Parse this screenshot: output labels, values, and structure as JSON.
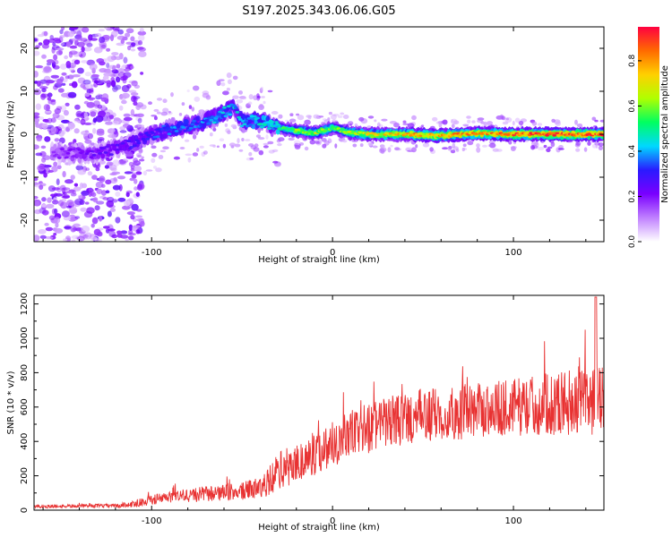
{
  "chart_data": [
    {
      "type": "heatmap",
      "title": "S197.2025.343.06.06.G05",
      "xlabel": "Height of straight line (km)",
      "ylabel": "Frequency (Hz)",
      "xlim": [
        -165,
        150
      ],
      "ylim": [
        -25,
        25
      ],
      "xticks": [
        -100,
        0,
        100
      ],
      "xtick_labels": [
        "-100",
        "0",
        "100"
      ],
      "yticks": [
        -20,
        -10,
        0,
        10,
        20
      ],
      "ytick_labels": [
        "-20",
        "-10",
        "0",
        "10",
        "20"
      ],
      "colorbar": {
        "label": "Normalized spectral amplitude",
        "range": [
          0,
          0.95
        ],
        "ticks": [
          0.0,
          0.2,
          0.4,
          0.6,
          0.8
        ],
        "tick_labels": [
          "0.0",
          "0.2",
          "0.4",
          "0.6",
          "0.8"
        ],
        "colormap": [
          "#ffffff",
          "#c080ff",
          "#7a00ff",
          "#2a1aff",
          "#00d8ff",
          "#00ff60",
          "#b0ff00",
          "#ffd000",
          "#ff6a00",
          "#ff0040"
        ]
      },
      "ridge": {
        "description_values": "dominant frequency (Hz) vs height (km)",
        "x": [
          -165,
          -150,
          -130,
          -110,
          -100,
          -90,
          -80,
          -70,
          -60,
          -55,
          -50,
          -40,
          -30,
          -20,
          -10,
          0,
          10,
          20,
          40,
          60,
          80,
          100,
          120,
          150
        ],
        "y": [
          -4,
          -4.5,
          -4.5,
          -2,
          0,
          1,
          2,
          3,
          5,
          6,
          3,
          3,
          1.5,
          0.8,
          0.3,
          1.5,
          0.3,
          0,
          0,
          -0.3,
          0.2,
          0,
          0,
          0
        ],
        "amplitude": [
          0.15,
          0.2,
          0.25,
          0.3,
          0.35,
          0.4,
          0.4,
          0.42,
          0.45,
          0.45,
          0.45,
          0.5,
          0.55,
          0.65,
          0.7,
          0.6,
          0.7,
          0.75,
          0.8,
          0.85,
          0.85,
          0.9,
          0.92,
          0.92
        ]
      }
    },
    {
      "type": "line",
      "xlabel": "Height of straight line (km)",
      "ylabel": "SNR (10 * v/v)",
      "xlim": [
        -165,
        150
      ],
      "ylim": [
        0,
        1250
      ],
      "xticks": [
        -100,
        0,
        100
      ],
      "xtick_labels": [
        "-100",
        "0",
        "100"
      ],
      "yticks": [
        0,
        200,
        400,
        600,
        800,
        1000,
        1200
      ],
      "ytick_labels": [
        "0",
        "200",
        "400",
        "600",
        "800",
        "1000",
        "1200"
      ],
      "line_color": "#e83232",
      "envelope": {
        "x": [
          -165,
          -140,
          -120,
          -110,
          -100,
          -90,
          -80,
          -70,
          -60,
          -50,
          -40,
          -35,
          -30,
          -20,
          -10,
          0,
          10,
          20,
          30,
          40,
          50,
          60,
          70,
          80,
          90,
          100,
          110,
          120,
          130,
          140,
          145,
          150
        ],
        "mean": [
          20,
          25,
          25,
          35,
          60,
          75,
          85,
          95,
          100,
          110,
          130,
          170,
          230,
          270,
          330,
          390,
          440,
          480,
          510,
          530,
          550,
          560,
          570,
          580,
          590,
          600,
          610,
          620,
          630,
          640,
          650,
          640
        ],
        "spread": [
          15,
          15,
          18,
          30,
          45,
          55,
          65,
          70,
          75,
          80,
          100,
          130,
          170,
          190,
          200,
          210,
          220,
          230,
          230,
          240,
          240,
          240,
          250,
          250,
          250,
          260,
          270,
          280,
          300,
          320,
          360,
          280
        ]
      }
    }
  ]
}
